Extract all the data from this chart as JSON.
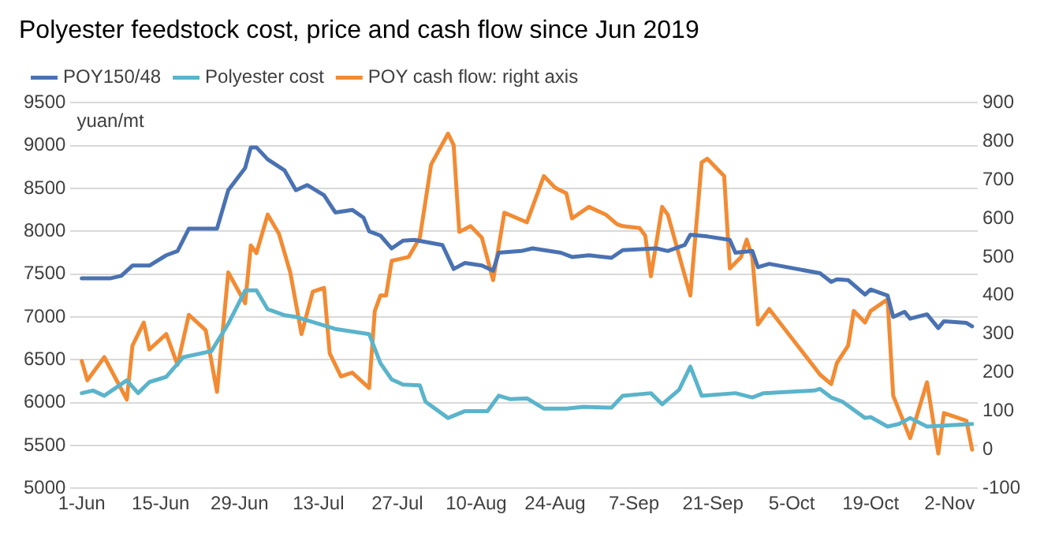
{
  "chart_data": {
    "type": "line",
    "title": "Polyester feedstock cost, price and cash flow since Jun 2019",
    "ylabel": "yuan/mt",
    "legend": "top",
    "grid": "y",
    "marker": "none",
    "line_style": "solid",
    "xlim": [
      "2019-05-30",
      "2019-11-07"
    ],
    "xticks": [
      {
        "value": "2019-06-01",
        "label": "1-Jun"
      },
      {
        "value": "2019-06-15",
        "label": "15-Jun"
      },
      {
        "value": "2019-06-29",
        "label": "29-Jun"
      },
      {
        "value": "2019-07-13",
        "label": "13-Jul"
      },
      {
        "value": "2019-07-27",
        "label": "27-Jul"
      },
      {
        "value": "2019-08-10",
        "label": "10-Aug"
      },
      {
        "value": "2019-08-24",
        "label": "24-Aug"
      },
      {
        "value": "2019-09-07",
        "label": "7-Sep"
      },
      {
        "value": "2019-09-21",
        "label": "21-Sep"
      },
      {
        "value": "2019-10-05",
        "label": "5-Oct"
      },
      {
        "value": "2019-10-19",
        "label": "19-Oct"
      },
      {
        "value": "2019-11-02",
        "label": "2-Nov"
      }
    ],
    "ylim": [
      5000,
      9500
    ],
    "yticks": [
      5000,
      5500,
      6000,
      6500,
      7000,
      7500,
      8000,
      8500,
      9000,
      9500
    ],
    "y2lim": [
      -100,
      900
    ],
    "y2ticks": [
      -100,
      0,
      100,
      200,
      300,
      400,
      500,
      600,
      700,
      800,
      900
    ],
    "series": [
      {
        "name": "POY150/48",
        "color": "#4a72b2",
        "x": [
          "2019-06-01",
          "2019-06-06",
          "2019-06-08",
          "2019-06-10",
          "2019-06-13",
          "2019-06-16",
          "2019-06-18",
          "2019-06-20",
          "2019-06-25",
          "2019-06-27",
          "2019-06-30",
          "2019-07-01",
          "2019-07-02",
          "2019-07-04",
          "2019-07-07",
          "2019-07-09",
          "2019-07-11",
          "2019-07-14",
          "2019-07-16",
          "2019-07-19",
          "2019-07-21",
          "2019-07-22",
          "2019-07-24",
          "2019-07-26",
          "2019-07-28",
          "2019-07-30",
          "2019-08-04",
          "2019-08-06",
          "2019-08-08",
          "2019-08-11",
          "2019-08-13",
          "2019-08-14",
          "2019-08-18",
          "2019-08-20",
          "2019-08-25",
          "2019-08-27",
          "2019-08-30",
          "2019-09-03",
          "2019-09-05",
          "2019-09-11",
          "2019-09-13",
          "2019-09-16",
          "2019-09-17",
          "2019-09-20",
          "2019-09-24",
          "2019-09-25",
          "2019-09-28",
          "2019-09-29",
          "2019-10-01",
          "2019-10-10",
          "2019-10-12",
          "2019-10-13",
          "2019-10-15",
          "2019-10-18",
          "2019-10-19",
          "2019-10-22",
          "2019-10-23",
          "2019-10-25",
          "2019-10-26",
          "2019-10-29",
          "2019-10-31",
          "2019-11-01",
          "2019-11-05",
          "2019-11-06"
        ],
        "values": [
          7450,
          7450,
          7480,
          7600,
          7600,
          7720,
          7770,
          8030,
          8030,
          8480,
          8740,
          8980,
          8980,
          8840,
          8710,
          8480,
          8540,
          8420,
          8220,
          8250,
          8160,
          8000,
          7950,
          7800,
          7890,
          7900,
          7840,
          7560,
          7630,
          7600,
          7540,
          7750,
          7770,
          7800,
          7750,
          7700,
          7720,
          7690,
          7780,
          7800,
          7770,
          7840,
          7960,
          7940,
          7900,
          7750,
          7770,
          7580,
          7620,
          7510,
          7410,
          7440,
          7430,
          7260,
          7320,
          7250,
          7000,
          7060,
          6980,
          7030,
          6870,
          6950,
          6930,
          6890
        ]
      },
      {
        "name": "Polyester cost",
        "color": "#5ab4cb",
        "x": [
          "2019-06-01",
          "2019-06-03",
          "2019-06-05",
          "2019-06-09",
          "2019-06-11",
          "2019-06-13",
          "2019-06-16",
          "2019-06-19",
          "2019-06-24",
          "2019-06-27",
          "2019-06-30",
          "2019-07-02",
          "2019-07-04",
          "2019-07-07",
          "2019-07-09",
          "2019-07-13",
          "2019-07-16",
          "2019-07-22",
          "2019-07-24",
          "2019-07-26",
          "2019-07-28",
          "2019-07-31",
          "2019-08-01",
          "2019-08-05",
          "2019-08-08",
          "2019-08-12",
          "2019-08-14",
          "2019-08-16",
          "2019-08-19",
          "2019-08-22",
          "2019-08-26",
          "2019-08-29",
          "2019-09-03",
          "2019-09-05",
          "2019-09-10",
          "2019-09-12",
          "2019-09-15",
          "2019-09-17",
          "2019-09-19",
          "2019-09-25",
          "2019-09-28",
          "2019-09-30",
          "2019-10-09",
          "2019-10-10",
          "2019-10-12",
          "2019-10-14",
          "2019-10-18",
          "2019-10-19",
          "2019-10-22",
          "2019-10-24",
          "2019-10-26",
          "2019-10-29",
          "2019-11-06"
        ],
        "values": [
          6110,
          6140,
          6080,
          6260,
          6110,
          6240,
          6300,
          6530,
          6600,
          6920,
          7310,
          7310,
          7090,
          7020,
          7000,
          6920,
          6860,
          6800,
          6460,
          6270,
          6210,
          6200,
          6010,
          5820,
          5900,
          5900,
          6080,
          6040,
          6050,
          5930,
          5930,
          5950,
          5940,
          6080,
          6110,
          5980,
          6150,
          6420,
          6080,
          6110,
          6060,
          6110,
          6140,
          6160,
          6060,
          6010,
          5820,
          5830,
          5720,
          5750,
          5820,
          5720,
          5750
        ]
      },
      {
        "name": "POY cash flow: right axis",
        "color": "#f28b33",
        "axis": "y2",
        "x": [
          "2019-06-01",
          "2019-06-02",
          "2019-06-05",
          "2019-06-09",
          "2019-06-10",
          "2019-06-12",
          "2019-06-13",
          "2019-06-16",
          "2019-06-18",
          "2019-06-20",
          "2019-06-23",
          "2019-06-25",
          "2019-06-27",
          "2019-06-30",
          "2019-07-01",
          "2019-07-02",
          "2019-07-04",
          "2019-07-06",
          "2019-07-08",
          "2019-07-10",
          "2019-07-12",
          "2019-07-14",
          "2019-07-15",
          "2019-07-17",
          "2019-07-19",
          "2019-07-22",
          "2019-07-23",
          "2019-07-24",
          "2019-07-25",
          "2019-07-26",
          "2019-07-29",
          "2019-07-31",
          "2019-08-02",
          "2019-08-05",
          "2019-08-06",
          "2019-08-07",
          "2019-08-09",
          "2019-08-11",
          "2019-08-13",
          "2019-08-15",
          "2019-08-19",
          "2019-08-22",
          "2019-08-24",
          "2019-08-26",
          "2019-08-27",
          "2019-08-30",
          "2019-09-02",
          "2019-09-04",
          "2019-09-05",
          "2019-09-08",
          "2019-09-09",
          "2019-09-10",
          "2019-09-12",
          "2019-09-13",
          "2019-09-17",
          "2019-09-19",
          "2019-09-20",
          "2019-09-23",
          "2019-09-24",
          "2019-09-26",
          "2019-09-27",
          "2019-09-28",
          "2019-09-29",
          "2019-10-01",
          "2019-10-10",
          "2019-10-12",
          "2019-10-13",
          "2019-10-15",
          "2019-10-16",
          "2019-10-18",
          "2019-10-19",
          "2019-10-22",
          "2019-10-23",
          "2019-10-26",
          "2019-10-29",
          "2019-10-31",
          "2019-11-01",
          "2019-11-05",
          "2019-11-06"
        ],
        "values": [
          230,
          180,
          240,
          130,
          270,
          330,
          260,
          300,
          220,
          350,
          310,
          150,
          460,
          380,
          530,
          510,
          610,
          560,
          460,
          300,
          410,
          420,
          250,
          190,
          200,
          160,
          360,
          400,
          400,
          490,
          500,
          550,
          740,
          820,
          790,
          565,
          580,
          550,
          440,
          615,
          590,
          710,
          680,
          665,
          600,
          630,
          610,
          585,
          580,
          575,
          555,
          450,
          630,
          610,
          400,
          745,
          755,
          710,
          470,
          500,
          545,
          500,
          325,
          365,
          195,
          170,
          225,
          270,
          360,
          330,
          360,
          390,
          140,
          30,
          175,
          -10,
          95,
          75,
          0
        ]
      }
    ]
  }
}
